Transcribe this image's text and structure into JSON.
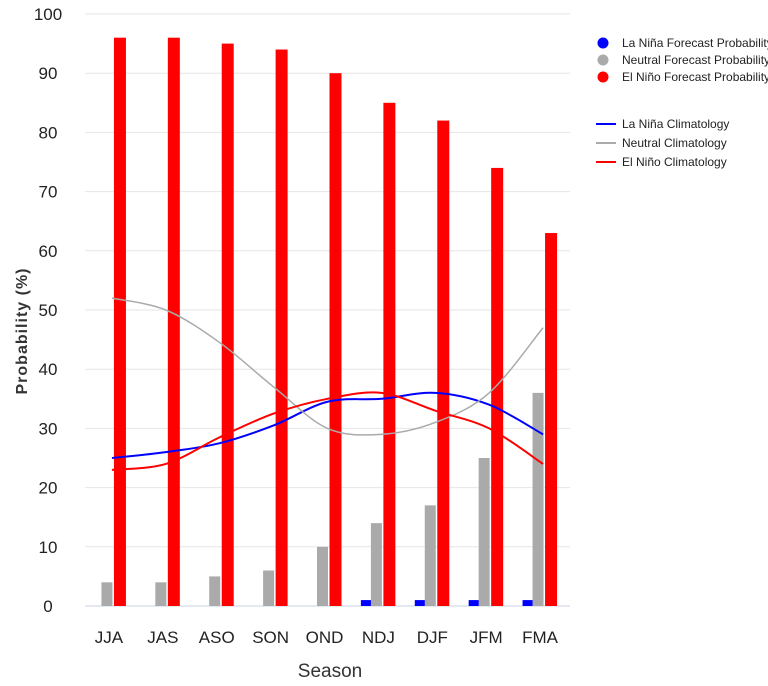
{
  "chart_data": {
    "type": "bar",
    "title": "",
    "xlabel": "Season",
    "ylabel": "Probability (%)",
    "ylim": [
      0,
      100
    ],
    "yticks": [
      0,
      10,
      20,
      30,
      40,
      50,
      60,
      70,
      80,
      90,
      100
    ],
    "grid": true,
    "legend_position": "top-right",
    "categories": [
      "JJA",
      "JAS",
      "ASO",
      "SON",
      "OND",
      "NDJ",
      "DJF",
      "JFM",
      "FMA"
    ],
    "bar_series": [
      {
        "name": "La Niña Forecast Probability",
        "color": "#0000ff",
        "values": [
          0,
          0,
          0,
          0,
          0,
          1,
          1,
          1,
          1
        ]
      },
      {
        "name": "Neutral Forecast Probability",
        "color": "#aaaaaa",
        "values": [
          4,
          4,
          5,
          6,
          10,
          14,
          17,
          25,
          36
        ]
      },
      {
        "name": "El Niño Forecast Probability",
        "color": "#ff0000",
        "values": [
          96,
          96,
          95,
          94,
          90,
          85,
          82,
          74,
          63
        ]
      }
    ],
    "line_series": [
      {
        "name": "La Niña Climatology",
        "color": "#0000ff",
        "values": [
          25,
          26,
          27.5,
          30.5,
          34.5,
          35,
          36,
          34,
          29
        ]
      },
      {
        "name": "Neutral Climatology",
        "color": "#aaaaaa",
        "values": [
          52,
          50,
          44.5,
          37,
          30,
          29,
          31,
          36,
          47
        ]
      },
      {
        "name": "El Niño Climatology",
        "color": "#ff0000",
        "values": [
          23,
          24,
          28.5,
          32.5,
          35,
          36,
          33,
          30,
          24
        ]
      }
    ]
  }
}
